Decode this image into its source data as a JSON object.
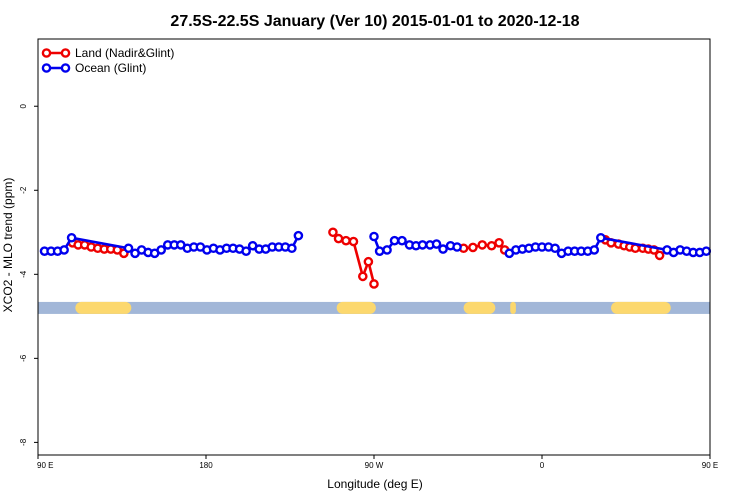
{
  "chart_data": {
    "type": "line",
    "title": "27.5S-22.5S January (Ver 10)   2015-01-01 to 2020-12-18",
    "xlabel": "Longitude (deg E)",
    "ylabel": "XCO2 - MLO trend (ppm)",
    "xlim": [
      0,
      360
    ],
    "ylim": [
      -8.3,
      1.6
    ],
    "x_ticks": [
      {
        "value": 0,
        "label": "90 E"
      },
      {
        "value": 90,
        "label": "180"
      },
      {
        "value": 180,
        "label": "90 W"
      },
      {
        "value": 270,
        "label": "0"
      },
      {
        "value": 360,
        "label": "90 E"
      },
      {
        "value": 450,
        "label": "180"
      }
    ],
    "y_ticks": [
      0,
      -2,
      -4,
      -6,
      -8
    ],
    "land_mask_y": -4.8,
    "land_segments": [
      [
        20,
        50
      ],
      [
        160,
        181
      ],
      [
        228,
        245
      ],
      [
        253,
        256
      ],
      [
        307,
        339
      ]
    ],
    "series": [
      {
        "name": "Land (Nadir&Glint)",
        "color": "#ee0000",
        "points": [
          [
            18.5,
            -3.25
          ],
          [
            21.5,
            -3.3
          ],
          [
            25,
            -3.3
          ],
          [
            28.5,
            -3.35
          ],
          [
            32,
            -3.38
          ],
          [
            35.5,
            -3.4
          ],
          [
            39,
            -3.4
          ],
          [
            42.5,
            -3.42
          ],
          [
            46,
            -3.5
          ],
          [
            158,
            -3.0
          ],
          [
            161,
            -3.15
          ],
          [
            165,
            -3.2
          ],
          [
            169,
            -3.22
          ],
          [
            174,
            -4.05
          ],
          [
            177,
            -3.7
          ],
          [
            180,
            -4.23
          ],
          [
            228,
            -3.38
          ],
          [
            233,
            -3.36
          ],
          [
            238,
            -3.3
          ],
          [
            243,
            -3.32
          ],
          [
            247,
            -3.25
          ],
          [
            250,
            -3.42
          ],
          [
            304,
            -3.18
          ],
          [
            307,
            -3.25
          ],
          [
            311,
            -3.28
          ],
          [
            314,
            -3.32
          ],
          [
            317,
            -3.35
          ],
          [
            320,
            -3.38
          ],
          [
            324,
            -3.38
          ],
          [
            327,
            -3.4
          ],
          [
            330,
            -3.42
          ],
          [
            333,
            -3.55
          ]
        ],
        "segments": [
          [
            0,
            5
          ],
          [
            5,
            8
          ],
          [
            9,
            15
          ],
          [
            16,
            21
          ],
          [
            22,
            31
          ]
        ]
      },
      {
        "name": "Ocean (Glint)",
        "color": "#0000ee",
        "points": [
          [
            3.5,
            -3.45
          ],
          [
            7,
            -3.45
          ],
          [
            10.5,
            -3.45
          ],
          [
            14,
            -3.42
          ],
          [
            18,
            -3.13
          ],
          [
            48.5,
            -3.38
          ],
          [
            52,
            -3.5
          ],
          [
            55.5,
            -3.42
          ],
          [
            59,
            -3.48
          ],
          [
            62.5,
            -3.5
          ],
          [
            66,
            -3.42
          ],
          [
            69.5,
            -3.3
          ],
          [
            73,
            -3.3
          ],
          [
            76.5,
            -3.3
          ],
          [
            80,
            -3.38
          ],
          [
            83.5,
            -3.35
          ],
          [
            87,
            -3.35
          ],
          [
            90.5,
            -3.42
          ],
          [
            94,
            -3.38
          ],
          [
            97.5,
            -3.42
          ],
          [
            101,
            -3.38
          ],
          [
            104.5,
            -3.38
          ],
          [
            108,
            -3.4
          ],
          [
            111.5,
            -3.45
          ],
          [
            115,
            -3.32
          ],
          [
            118.5,
            -3.4
          ],
          [
            122,
            -3.4
          ],
          [
            125.5,
            -3.35
          ],
          [
            129,
            -3.35
          ],
          [
            132.5,
            -3.35
          ],
          [
            136,
            -3.38
          ],
          [
            139.5,
            -3.08
          ],
          [
            180,
            -3.1
          ],
          [
            183,
            -3.45
          ],
          [
            187,
            -3.42
          ],
          [
            191,
            -3.2
          ],
          [
            195,
            -3.2
          ],
          [
            199,
            -3.3
          ],
          [
            202.5,
            -3.32
          ],
          [
            206,
            -3.3
          ],
          [
            210,
            -3.3
          ],
          [
            213.5,
            -3.28
          ],
          [
            217,
            -3.4
          ],
          [
            221,
            -3.32
          ],
          [
            224.5,
            -3.35
          ],
          [
            252.5,
            -3.5
          ],
          [
            256,
            -3.42
          ],
          [
            259.5,
            -3.4
          ],
          [
            263,
            -3.38
          ],
          [
            266.5,
            -3.35
          ],
          [
            270,
            -3.35
          ],
          [
            273.5,
            -3.35
          ],
          [
            277,
            -3.38
          ],
          [
            280.5,
            -3.5
          ],
          [
            284,
            -3.45
          ],
          [
            287.5,
            -3.45
          ],
          [
            291,
            -3.45
          ],
          [
            294.5,
            -3.45
          ],
          [
            298,
            -3.42
          ],
          [
            301.5,
            -3.13
          ],
          [
            337,
            -3.42
          ],
          [
            340.5,
            -3.48
          ],
          [
            344,
            -3.42
          ],
          [
            347.5,
            -3.45
          ],
          [
            351,
            -3.48
          ],
          [
            354.5,
            -3.48
          ],
          [
            358,
            -3.45
          ]
        ],
        "segments": [
          [
            0,
            4
          ],
          [
            4,
            5
          ],
          [
            5,
            31
          ],
          [
            32,
            44
          ],
          [
            45,
            59
          ],
          [
            59,
            60
          ],
          [
            60,
            66
          ]
        ]
      }
    ],
    "legend": {
      "position": "top-left"
    }
  }
}
